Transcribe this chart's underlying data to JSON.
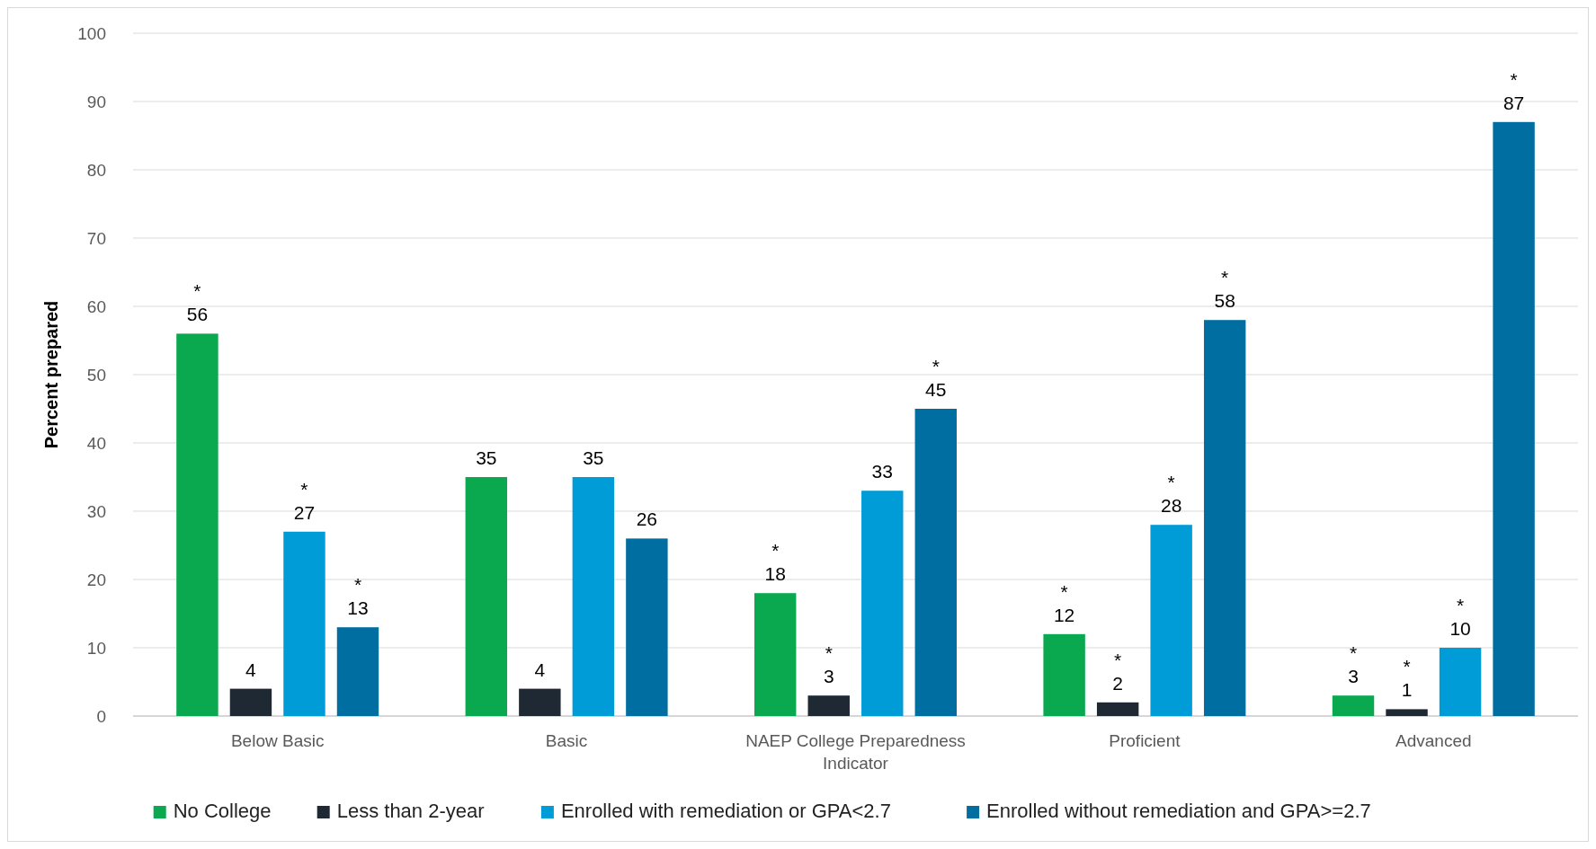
{
  "chart_data": {
    "type": "bar",
    "ylabel": "Percent prepared",
    "categories": [
      "Below Basic",
      "Basic",
      "NAEP College Preparedness Indicator",
      "Proficient",
      "Advanced"
    ],
    "series": [
      {
        "name": "No College",
        "color": "#0aa84f",
        "values": [
          56,
          35,
          18,
          12,
          3
        ],
        "value_labels": [
          "*\n56",
          "35",
          "*\n18",
          "*\n12",
          "*\n3"
        ]
      },
      {
        "name": "Less than 2-year",
        "color": "#1f2933",
        "values": [
          4,
          4,
          3,
          2,
          1
        ],
        "value_labels": [
          "4",
          "4",
          "*\n3",
          "*\n2",
          "*\n1"
        ]
      },
      {
        "name": "Enrolled with remediation or GPA<2.7",
        "color": "#009cd8",
        "values": [
          27,
          35,
          33,
          28,
          10
        ],
        "value_labels": [
          "*\n27",
          "35",
          "33",
          "*\n28",
          "*\n10"
        ]
      },
      {
        "name": "Enrolled without remediation and GPA>=2.7",
        "color": "#006ea0",
        "values": [
          13,
          26,
          45,
          58,
          87
        ],
        "value_labels": [
          "*\n13",
          "26",
          "*\n45",
          "*\n58",
          "*\n87"
        ]
      }
    ],
    "ylim": [
      0,
      100
    ],
    "yticks": [
      0,
      10,
      20,
      30,
      40,
      50,
      60,
      70,
      80,
      90,
      100
    ],
    "grid": "y",
    "legend": "bottom"
  }
}
